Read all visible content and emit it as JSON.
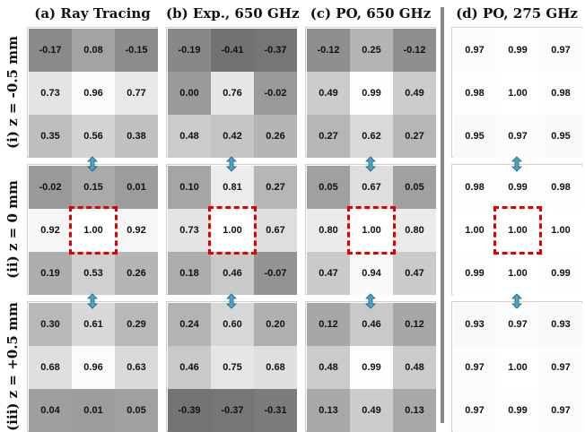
{
  "columns": [
    {
      "title": "(a) Ray Tracing"
    },
    {
      "title": "(b) Exp., 650 GHz"
    },
    {
      "title": "(c) PO, 650 GHz"
    },
    {
      "title": "(d) PO, 275 GHz"
    }
  ],
  "rows": [
    {
      "label": "(i) z = -0.5 mm"
    },
    {
      "label": "(ii) z = 0 mm"
    },
    {
      "label": "(iii) z = +0.5 mm"
    }
  ],
  "grids": [
    [
      [
        "-0.17",
        "0.08",
        "-0.15",
        "0.73",
        "0.96",
        "0.77",
        "0.35",
        "0.56",
        "0.38"
      ],
      [
        "-0.19",
        "-0.41",
        "-0.37",
        "0.00",
        "0.76",
        "-0.02",
        "0.48",
        "0.42",
        "0.26"
      ],
      [
        "-0.12",
        "0.25",
        "-0.12",
        "0.49",
        "0.99",
        "0.49",
        "0.27",
        "0.62",
        "0.27"
      ],
      [
        "0.97",
        "0.99",
        "0.97",
        "0.98",
        "1.00",
        "0.98",
        "0.95",
        "0.97",
        "0.95"
      ]
    ],
    [
      [
        "-0.02",
        "0.15",
        "0.01",
        "0.92",
        "1.00",
        "0.92",
        "0.19",
        "0.53",
        "0.26"
      ],
      [
        "0.10",
        "0.81",
        "0.27",
        "0.73",
        "1.00",
        "0.67",
        "0.18",
        "0.46",
        "-0.07"
      ],
      [
        "0.05",
        "0.67",
        "0.05",
        "0.80",
        "1.00",
        "0.80",
        "0.47",
        "0.94",
        "0.47"
      ],
      [
        "0.98",
        "0.99",
        "0.98",
        "1.00",
        "1.00",
        "1.00",
        "0.99",
        "1.00",
        "0.99"
      ]
    ],
    [
      [
        "0.30",
        "0.61",
        "0.29",
        "0.68",
        "0.96",
        "0.63",
        "0.04",
        "0.01",
        "0.05"
      ],
      [
        "0.24",
        "0.60",
        "0.20",
        "0.46",
        "0.75",
        "0.68",
        "-0.39",
        "-0.37",
        "-0.31"
      ],
      [
        "0.12",
        "0.46",
        "0.12",
        "0.48",
        "0.99",
        "0.48",
        "0.13",
        "0.49",
        "0.13"
      ],
      [
        "0.93",
        "0.97",
        "0.93",
        "0.97",
        "1.00",
        "0.97",
        "0.97",
        "0.99",
        "0.97"
      ]
    ]
  ],
  "colors": {
    "highlight_box": "#e00000",
    "arrow_fill": "#4aa3c8",
    "arrow_stroke": "#1f5f7a",
    "divider": "#888888"
  },
  "icons": {
    "between_rows": "vertical-double-arrow-icon"
  }
}
